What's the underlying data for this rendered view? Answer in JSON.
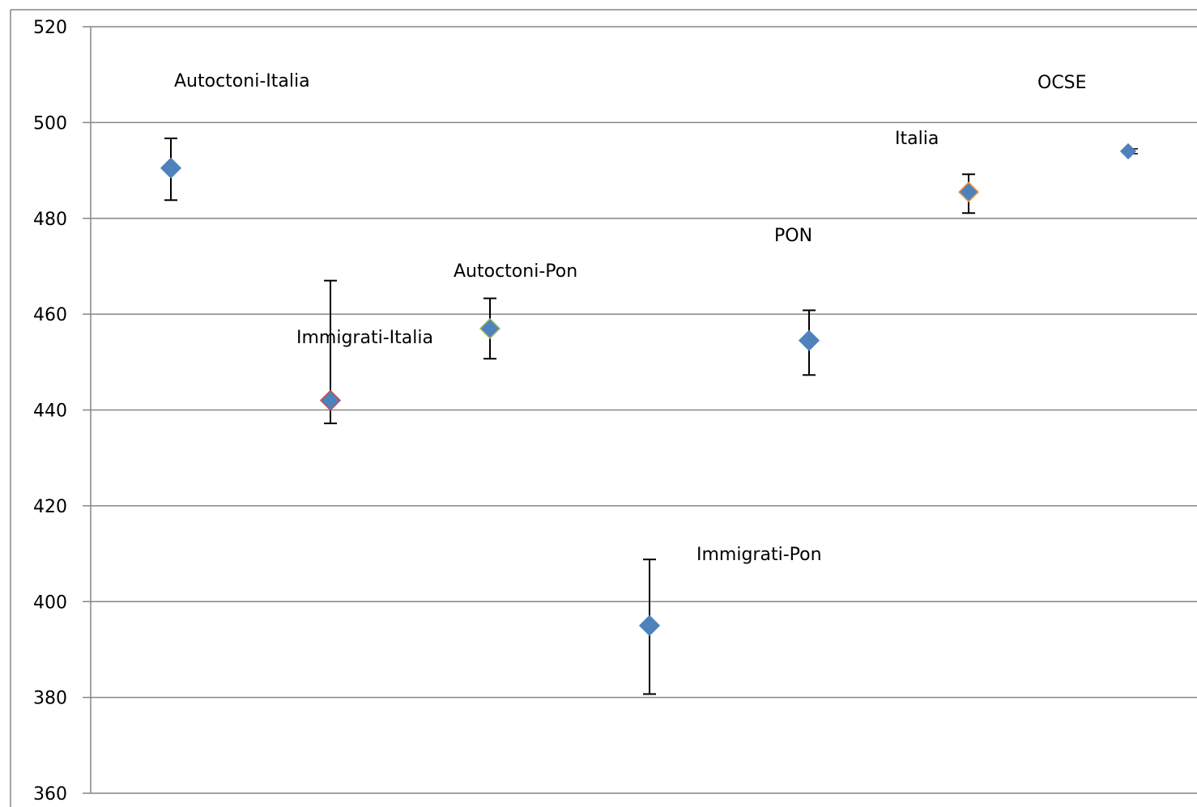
{
  "chart_data": {
    "type": "scatter",
    "title": "",
    "xlabel": "",
    "ylabel": "",
    "ylim": [
      360,
      520
    ],
    "y_ticks": [
      360,
      380,
      400,
      420,
      440,
      460,
      480,
      500,
      520
    ],
    "y_tick_labels": [
      "360",
      "380",
      "400",
      "420",
      "440",
      "460",
      "480",
      "500",
      "520"
    ],
    "grid": true,
    "legend": "none",
    "x_categories": 7,
    "points": [
      {
        "label": "Autoctoni-Italia",
        "x": 1,
        "y": 490.5,
        "err_low": 483.8,
        "err_high": 496.7,
        "color": "#4f81bd",
        "stroke": "#4f81bd"
      },
      {
        "label": "Immigrati-Italia",
        "x": 2,
        "y": 442,
        "err_low": 437.2,
        "err_high": 467,
        "color": "#4f81bd",
        "stroke": "#c0504d"
      },
      {
        "label": "Autoctoni-Pon",
        "x": 3,
        "y": 457,
        "err_low": 450.7,
        "err_high": 463.3,
        "color": "#4f81bd",
        "stroke": "#9bbb59"
      },
      {
        "label": "Immigrati-Pon",
        "x": 4,
        "y": 395,
        "err_low": 380.7,
        "err_high": 408.8,
        "color": "#4f81bd",
        "stroke": "#4f81bd"
      },
      {
        "label": "PON",
        "x": 5,
        "y": 454.5,
        "err_low": 447.3,
        "err_high": 460.8,
        "color": "#4f81bd",
        "stroke": "#4f81bd"
      },
      {
        "label": "Italia",
        "x": 6,
        "y": 485.5,
        "err_low": 481.1,
        "err_high": 489.2,
        "color": "#4f81bd",
        "stroke": "#f79646"
      },
      {
        "label": "OCSE",
        "x": 7,
        "y": 494,
        "err_low": 493.2,
        "err_high": 494.8,
        "color": "#4f81bd",
        "stroke": "#4f81bd"
      }
    ],
    "colors": {
      "grid": "#868686",
      "axis": "#868686",
      "errorbar": "#000000",
      "marker": "#4f81bd"
    }
  }
}
